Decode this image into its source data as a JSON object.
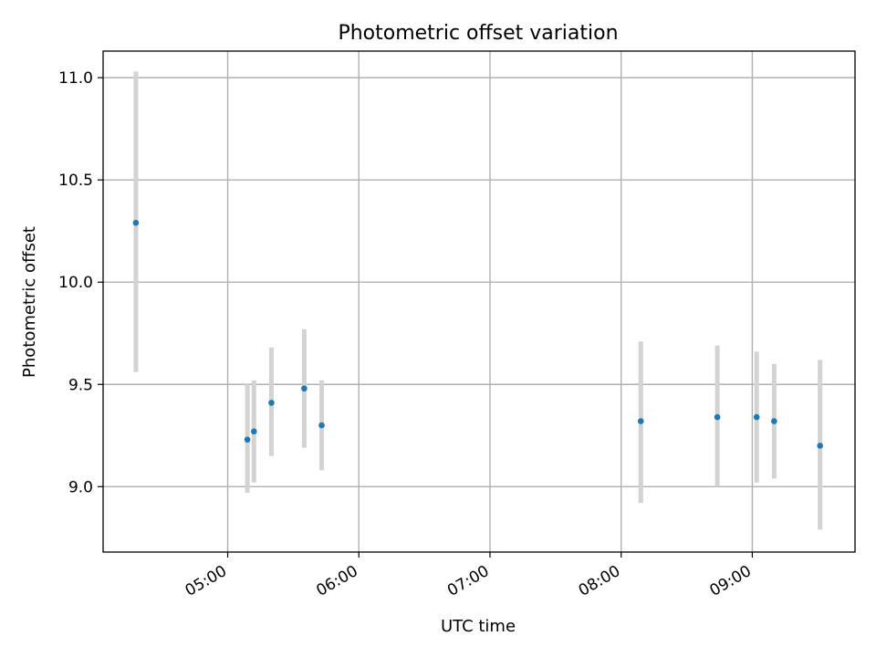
{
  "chart_data": {
    "type": "scatter",
    "title": "Photometric offset variation",
    "xlabel": "UTC time",
    "ylabel": "Photometric offset",
    "x_ticks": [
      "05:00",
      "06:00",
      "07:00",
      "08:00",
      "09:00"
    ],
    "y_ticks": [
      "9.0",
      "9.5",
      "10.0",
      "10.5",
      "11.0"
    ],
    "xlim": [
      "04:03",
      "09:47"
    ],
    "ylim": [
      8.68,
      11.13
    ],
    "grid": true,
    "colors": {
      "point": "#1f77b4",
      "errorbar": "#d3d3d3",
      "grid": "#b0b0b0"
    },
    "points": [
      {
        "x": "04:18",
        "y": 10.29,
        "err_low": 9.56,
        "err_high": 11.03
      },
      {
        "x": "05:09",
        "y": 9.23,
        "err_low": 8.97,
        "err_high": 9.5
      },
      {
        "x": "05:12",
        "y": 9.27,
        "err_low": 9.02,
        "err_high": 9.52
      },
      {
        "x": "05:20",
        "y": 9.41,
        "err_low": 9.15,
        "err_high": 9.68
      },
      {
        "x": "05:35",
        "y": 9.48,
        "err_low": 9.19,
        "err_high": 9.77
      },
      {
        "x": "05:43",
        "y": 9.3,
        "err_low": 9.08,
        "err_high": 9.52
      },
      {
        "x": "08:09",
        "y": 9.32,
        "err_low": 8.92,
        "err_high": 9.71
      },
      {
        "x": "08:44",
        "y": 9.34,
        "err_low": 9.0,
        "err_high": 9.69
      },
      {
        "x": "09:02",
        "y": 9.34,
        "err_low": 9.02,
        "err_high": 9.66
      },
      {
        "x": "09:10",
        "y": 9.32,
        "err_low": 9.04,
        "err_high": 9.6
      },
      {
        "x": "09:31",
        "y": 9.2,
        "err_low": 8.79,
        "err_high": 9.62
      }
    ]
  }
}
